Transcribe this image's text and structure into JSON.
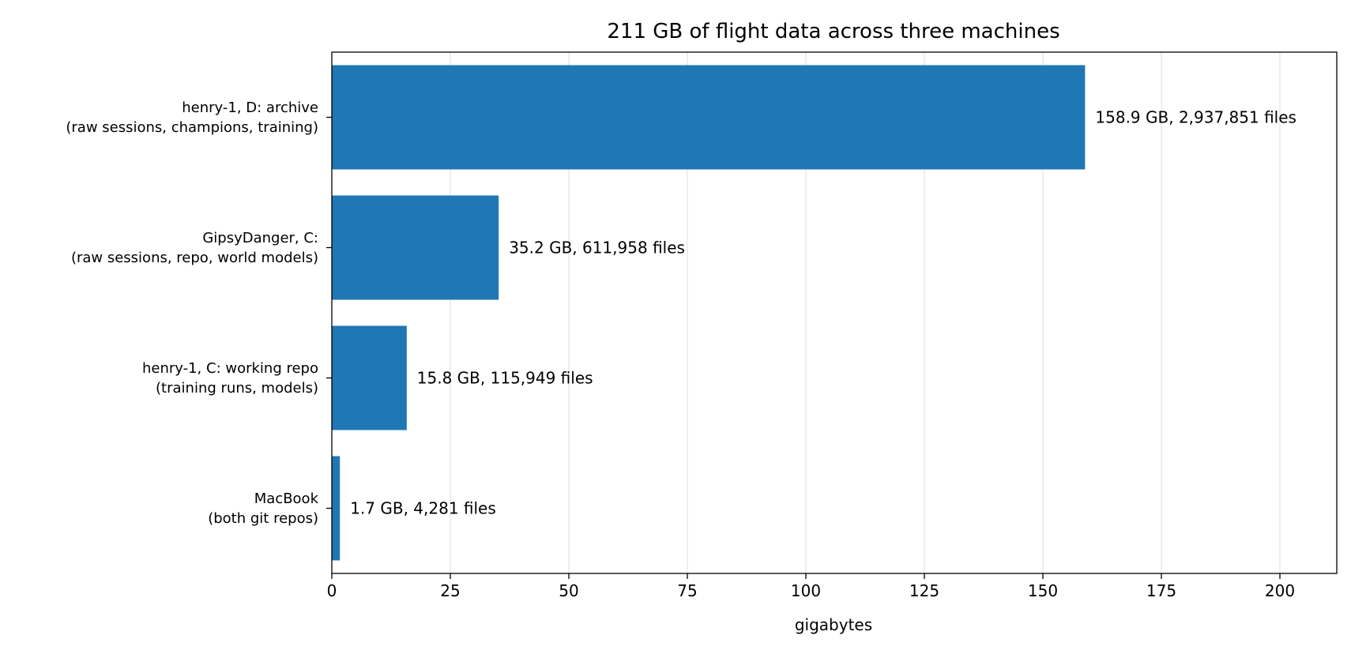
{
  "chart_data": {
    "type": "bar",
    "orientation": "horizontal",
    "title": "211 GB of flight data across three machines",
    "xlabel": "gigabytes",
    "ylabel": "",
    "xlim": [
      0,
      212
    ],
    "xticks": [
      0,
      25,
      50,
      75,
      100,
      125,
      150,
      175,
      200
    ],
    "grid": "x",
    "bar_color": "#1f77b4",
    "categories": [
      [
        "henry-1, D: archive",
        "(raw sessions, champions, training)"
      ],
      [
        "GipsyDanger, C:",
        "(raw sessions, repo, world models)"
      ],
      [
        "henry-1, C: working repo",
        "(training runs, models)"
      ],
      [
        "MacBook",
        "(both git repos)"
      ]
    ],
    "values": [
      158.9,
      35.2,
      15.8,
      1.7
    ],
    "data_labels": [
      "158.9 GB, 2,937,851 files",
      "35.2 GB, 611,958 files",
      "15.8 GB, 115,949 files",
      "1.7 GB, 4,281 files"
    ]
  }
}
